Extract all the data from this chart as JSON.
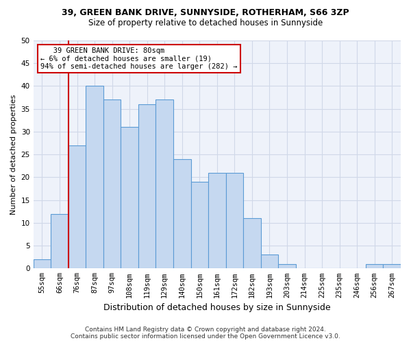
{
  "title1": "39, GREEN BANK DRIVE, SUNNYSIDE, ROTHERHAM, S66 3ZP",
  "title2": "Size of property relative to detached houses in Sunnyside",
  "xlabel": "Distribution of detached houses by size in Sunnyside",
  "ylabel": "Number of detached properties",
  "footnote1": "Contains HM Land Registry data © Crown copyright and database right 2024.",
  "footnote2": "Contains public sector information licensed under the Open Government Licence v3.0.",
  "bar_labels": [
    "55sqm",
    "66sqm",
    "76sqm",
    "87sqm",
    "97sqm",
    "108sqm",
    "119sqm",
    "129sqm",
    "140sqm",
    "150sqm",
    "161sqm",
    "172sqm",
    "182sqm",
    "193sqm",
    "203sqm",
    "214sqm",
    "225sqm",
    "235sqm",
    "246sqm",
    "256sqm",
    "267sqm"
  ],
  "bar_values": [
    2,
    12,
    27,
    40,
    37,
    31,
    36,
    37,
    24,
    19,
    21,
    21,
    11,
    3,
    1,
    0,
    0,
    0,
    0,
    1,
    1
  ],
  "bar_color": "#c5d8f0",
  "bar_edge_color": "#5b9bd5",
  "grid_color": "#d0d8e8",
  "background_color": "#eef2fa",
  "annotation_line1": "   39 GREEN BANK DRIVE: 80sqm",
  "annotation_line2": "← 6% of detached houses are smaller (19)",
  "annotation_line3": "94% of semi-detached houses are larger (282) →",
  "redline_x": 1.5,
  "ylim": [
    0,
    50
  ],
  "yticks": [
    0,
    5,
    10,
    15,
    20,
    25,
    30,
    35,
    40,
    45,
    50
  ],
  "annotation_box_color": "#ffffff",
  "annotation_box_edge": "#cc0000",
  "redline_color": "#cc0000",
  "title1_fontsize": 9,
  "title2_fontsize": 8.5,
  "ylabel_fontsize": 8,
  "xlabel_fontsize": 9,
  "tick_fontsize": 7.5,
  "annot_fontsize": 7.5,
  "footnote_fontsize": 6.5
}
